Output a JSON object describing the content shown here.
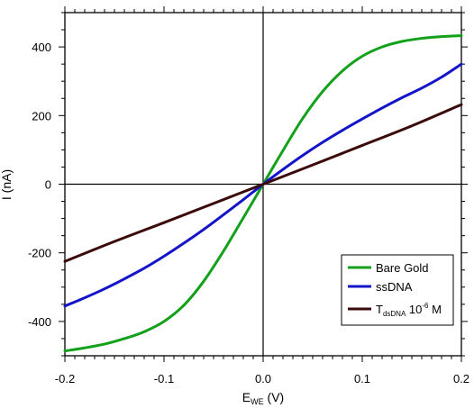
{
  "chart_data": {
    "type": "line",
    "xlabel": {
      "main": "E",
      "sub": "WE",
      "rest": " (V)"
    },
    "ylabel": "I (nA)",
    "xlim": [
      -0.2,
      0.2
    ],
    "ylim": [
      -500,
      500
    ],
    "x_ticks": [
      -0.2,
      -0.1,
      0.0,
      0.1,
      0.2
    ],
    "x_tick_labels": [
      "-0.2",
      "-0.1",
      "0.0",
      "0.1",
      "0.2"
    ],
    "y_ticks": [
      -400,
      -200,
      0,
      200,
      400
    ],
    "y_tick_labels": [
      "-400",
      "-200",
      "0",
      "200",
      "400"
    ],
    "grid": false,
    "zero_lines": true,
    "legend_position": "bottom-right",
    "series": [
      {
        "name": "Bare Gold",
        "color": "#13a01b",
        "x": [
          -0.2,
          -0.18,
          -0.16,
          -0.14,
          -0.12,
          -0.1,
          -0.08,
          -0.06,
          -0.04,
          -0.02,
          0.0,
          0.02,
          0.04,
          0.06,
          0.08,
          0.1,
          0.12,
          0.14,
          0.16,
          0.18,
          0.2
        ],
        "y": [
          -486,
          -477,
          -466,
          -450,
          -430,
          -400,
          -353,
          -283,
          -195,
          -98,
          0,
          98,
          192,
          270,
          330,
          373,
          400,
          416,
          425,
          430,
          433
        ]
      },
      {
        "name": "ssDNA",
        "color": "#1414c8",
        "x": [
          -0.2,
          -0.18,
          -0.16,
          -0.14,
          -0.12,
          -0.1,
          -0.08,
          -0.06,
          -0.04,
          -0.02,
          0.0,
          0.02,
          0.04,
          0.06,
          0.08,
          0.1,
          0.12,
          0.14,
          0.16,
          0.18,
          0.2
        ],
        "y": [
          -355,
          -331,
          -305,
          -276,
          -245,
          -210,
          -172,
          -132,
          -89,
          -45,
          0,
          43,
          84,
          122,
          157,
          190,
          222,
          252,
          280,
          312,
          350
        ]
      },
      {
        "name": "T dsDNA 10-6 M",
        "label": {
          "main": "T",
          "sub": "dsDNA",
          "mid": " 10",
          "sup": "-6",
          "end": " M"
        },
        "color": "#3c0a0a",
        "x": [
          -0.2,
          -0.15,
          -0.1,
          -0.05,
          0.0,
          0.05,
          0.1,
          0.15,
          0.2
        ],
        "y": [
          -225,
          -167,
          -112,
          -56,
          0,
          56,
          113,
          170,
          232
        ]
      }
    ]
  }
}
